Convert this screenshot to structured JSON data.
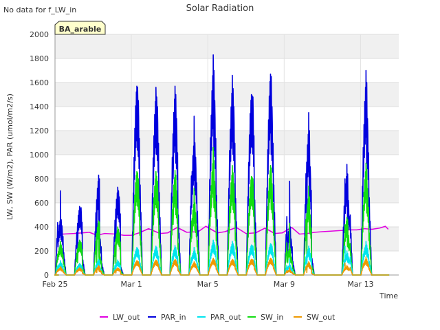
{
  "chart_data": {
    "type": "line",
    "title": "Solar Radiation",
    "xlabel": "Time",
    "ylabel": "LW, SW (W/m2), PAR (umol/m2/s)",
    "corner_note": "No data for f_LW_in",
    "badge": "BA_arable",
    "x_ticks": [
      {
        "label": "Feb 25",
        "day": 0
      },
      {
        "label": "Mar 1",
        "day": 4
      },
      {
        "label": "Mar 5",
        "day": 8
      },
      {
        "label": "Mar 9",
        "day": 12
      },
      {
        "label": "Mar 13",
        "day": 16
      }
    ],
    "y_ticks": [
      0,
      200,
      400,
      600,
      800,
      1000,
      1200,
      1400,
      1600,
      1800,
      2000
    ],
    "xlim": [
      0,
      18
    ],
    "ylim": [
      0,
      2000
    ],
    "days": [
      0.3,
      1.3,
      2.3,
      3.3,
      4.3,
      5.3,
      6.3,
      7.3,
      8.3,
      9.3,
      10.3,
      11.3,
      12.3,
      13.3,
      15.3,
      16.3
    ],
    "series": [
      {
        "name": "LW_out",
        "color": "#e000e0",
        "values": [
          [
            0.4,
            340
          ],
          [
            1.0,
            345
          ],
          [
            1.8,
            355
          ],
          [
            2.2,
            330
          ],
          [
            2.6,
            345
          ],
          [
            3.2,
            340
          ],
          [
            3.6,
            330
          ],
          [
            4.0,
            330
          ],
          [
            4.4,
            350
          ],
          [
            4.9,
            385
          ],
          [
            5.5,
            345
          ],
          [
            5.9,
            350
          ],
          [
            6.4,
            395
          ],
          [
            6.9,
            355
          ],
          [
            7.5,
            360
          ],
          [
            7.9,
            405
          ],
          [
            8.5,
            350
          ],
          [
            8.9,
            360
          ],
          [
            9.5,
            395
          ],
          [
            10.0,
            345
          ],
          [
            10.5,
            350
          ],
          [
            11.0,
            390
          ],
          [
            11.5,
            345
          ],
          [
            11.9,
            350
          ],
          [
            12.4,
            395
          ],
          [
            12.8,
            340
          ],
          [
            13.2,
            345
          ],
          [
            13.6,
            355
          ],
          [
            14.0,
            360
          ],
          [
            14.5,
            365
          ],
          [
            15.0,
            370
          ],
          [
            15.4,
            375
          ],
          [
            15.8,
            375
          ],
          [
            16.2,
            385
          ],
          [
            16.6,
            380
          ],
          [
            17.0,
            390
          ],
          [
            17.3,
            405
          ],
          [
            17.45,
            380
          ]
        ]
      },
      {
        "name": "PAR_in",
        "color": "#0000dd",
        "peaks": [
          [
            700,
            460,
            410,
            300
          ],
          [
            570,
            550,
            560,
            200
          ],
          [
            830,
            800,
            300,
            150
          ],
          [
            730,
            700,
            650,
            100
          ],
          [
            1570,
            1560,
            1450,
            1200
          ],
          [
            1560,
            1480,
            1400,
            1100
          ],
          [
            1570,
            1500,
            1300,
            800
          ],
          [
            1320,
            1100,
            980,
            850
          ],
          [
            1830,
            1700,
            1450,
            1060
          ],
          [
            1660,
            1550,
            1400,
            1020
          ],
          [
            1500,
            1490,
            1480,
            1000
          ],
          [
            1670,
            1650,
            1400,
            1200
          ],
          [
            780,
            400,
            300,
            180
          ],
          [
            1350,
            1200,
            900,
            220
          ],
          [
            920,
            840,
            620,
            800
          ],
          [
            1700,
            1600,
            1300,
            1030
          ]
        ]
      },
      {
        "name": "PAR_out",
        "color": "#00e5ee",
        "peaks": [
          [
            120,
            100,
            90,
            70
          ],
          [
            95,
            90,
            80,
            40
          ],
          [
            130,
            120,
            60,
            30
          ],
          [
            125,
            110,
            100,
            20
          ],
          [
            230,
            220,
            210,
            160
          ],
          [
            240,
            230,
            200,
            150
          ],
          [
            245,
            230,
            200,
            120
          ],
          [
            230,
            200,
            180,
            160
          ],
          [
            290,
            270,
            250,
            200
          ],
          [
            280,
            260,
            240,
            190
          ],
          [
            250,
            245,
            240,
            180
          ],
          [
            260,
            255,
            240,
            200
          ],
          [
            130,
            80,
            60,
            30
          ],
          [
            240,
            220,
            180,
            40
          ],
          [
            200,
            180,
            150,
            240
          ],
          [
            280,
            250,
            220,
            180
          ]
        ]
      },
      {
        "name": "SW_in",
        "color": "#11dd11",
        "peaks": [
          [
            280,
            250,
            220,
            180
          ],
          [
            290,
            280,
            270,
            100
          ],
          [
            450,
            440,
            150,
            80
          ],
          [
            400,
            380,
            350,
            50
          ],
          [
            860,
            850,
            800,
            650
          ],
          [
            860,
            820,
            780,
            600
          ],
          [
            870,
            830,
            700,
            420
          ],
          [
            720,
            600,
            520,
            460
          ],
          [
            1060,
            950,
            780,
            560
          ],
          [
            910,
            850,
            760,
            560
          ],
          [
            820,
            810,
            800,
            540
          ],
          [
            910,
            890,
            760,
            650
          ],
          [
            430,
            220,
            150,
            100
          ],
          [
            740,
            650,
            500,
            120
          ],
          [
            480,
            460,
            330,
            420
          ],
          [
            930,
            880,
            720,
            560
          ]
        ]
      },
      {
        "name": "SW_out",
        "color": "#ee9900",
        "peaks": [
          [
            70,
            60,
            50,
            40
          ],
          [
            60,
            55,
            50,
            25
          ],
          [
            80,
            70,
            40,
            20
          ],
          [
            60,
            55,
            50,
            15
          ],
          [
            120,
            115,
            110,
            90
          ],
          [
            125,
            120,
            110,
            90
          ],
          [
            130,
            125,
            110,
            70
          ],
          [
            110,
            100,
            90,
            80
          ],
          [
            140,
            130,
            120,
            90
          ],
          [
            130,
            125,
            115,
            90
          ],
          [
            130,
            128,
            125,
            90
          ],
          [
            140,
            135,
            125,
            100
          ],
          [
            60,
            40,
            30,
            20
          ],
          [
            110,
            100,
            80,
            20
          ],
          [
            80,
            70,
            60,
            100
          ],
          [
            150,
            130,
            110,
            90
          ]
        ]
      }
    ],
    "legend_position": "bottom"
  }
}
